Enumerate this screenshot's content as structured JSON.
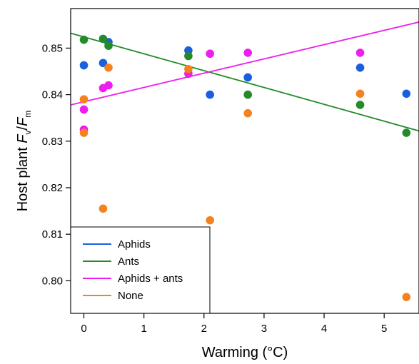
{
  "chart_data": {
    "type": "scatter",
    "xlabel": "Warming (°C)",
    "ylabel": {
      "prefix": "Host plant ",
      "var1": "F",
      "sub1": "v",
      "slash": "/",
      "var2": "F",
      "sub2": "m"
    },
    "xlim": [
      -0.22,
      5.58
    ],
    "ylim": [
      0.793,
      0.8585
    ],
    "xticks": [
      0,
      1,
      2,
      3,
      4,
      5
    ],
    "yticks": [
      0.8,
      0.81,
      0.82,
      0.83,
      0.84,
      0.85
    ],
    "xtick_labels": [
      "0",
      "1",
      "2",
      "3",
      "4",
      "5"
    ],
    "ytick_labels": [
      "0.80",
      "0.81",
      "0.82",
      "0.83",
      "0.84",
      "0.85"
    ],
    "legend_position": "bottom-left",
    "series": [
      {
        "name": "Aphids",
        "color": "#1a5fe0",
        "points": [
          [
            0,
            0.8463
          ],
          [
            0.32,
            0.8468
          ],
          [
            0.41,
            0.8513
          ],
          [
            1.74,
            0.8495
          ],
          [
            2.1,
            0.84
          ],
          [
            2.73,
            0.8437
          ],
          [
            4.6,
            0.8458
          ],
          [
            5.37,
            0.8402
          ]
        ],
        "fit": null
      },
      {
        "name": "Ants",
        "color": "#238b2a",
        "points": [
          [
            0,
            0.8518
          ],
          [
            0.32,
            0.852
          ],
          [
            0.41,
            0.8505
          ],
          [
            1.74,
            0.8483
          ],
          [
            2.73,
            0.84
          ],
          [
            4.6,
            0.8378
          ],
          [
            5.37,
            0.8318
          ]
        ],
        "fit": [
          [
            -0.22,
            0.8532
          ],
          [
            5.58,
            0.8322
          ]
        ]
      },
      {
        "name": "Aphids + ants",
        "color": "#ee1eee",
        "points": [
          [
            0,
            0.8368
          ],
          [
            0,
            0.8325
          ],
          [
            0.32,
            0.8414
          ],
          [
            0.41,
            0.842
          ],
          [
            1.74,
            0.8445
          ],
          [
            2.1,
            0.8488
          ],
          [
            2.73,
            0.849
          ],
          [
            4.6,
            0.849
          ]
        ],
        "fit": [
          [
            -0.22,
            0.8378
          ],
          [
            5.58,
            0.8556
          ]
        ]
      },
      {
        "name": "None",
        "color": "#f58220",
        "points": [
          [
            0,
            0.839
          ],
          [
            0,
            0.8318
          ],
          [
            0.32,
            0.8155
          ],
          [
            0.41,
            0.8458
          ],
          [
            1.74,
            0.8455
          ],
          [
            2.1,
            0.813
          ],
          [
            2.73,
            0.836
          ],
          [
            4.6,
            0.8402
          ],
          [
            5.37,
            0.7965
          ]
        ],
        "fit": null
      }
    ]
  }
}
